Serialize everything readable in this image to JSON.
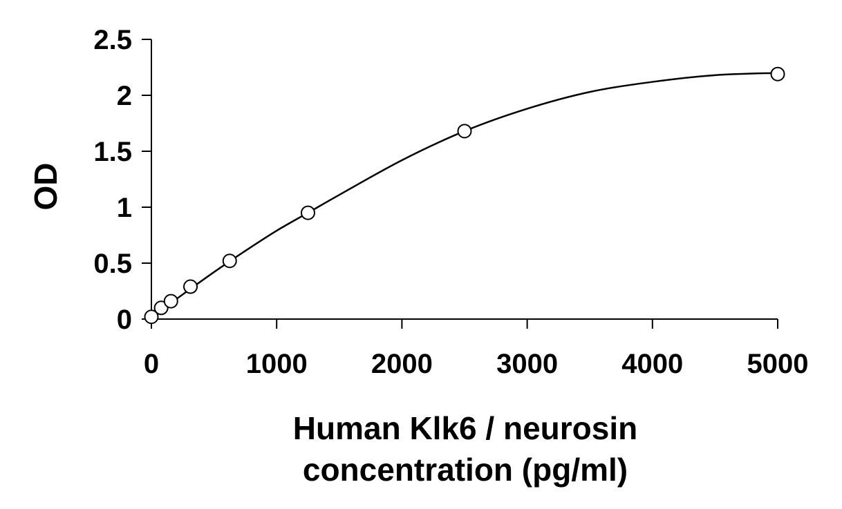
{
  "chart_data": {
    "type": "scatter",
    "title": "",
    "xlabel_lines": [
      "Human Klk6 / neurosin",
      "concentration (pg/ml)"
    ],
    "ylabel": "OD",
    "xlim": [
      0,
      5000
    ],
    "ylim": [
      0,
      2.5
    ],
    "x_ticks": [
      0,
      1000,
      2000,
      3000,
      4000,
      5000
    ],
    "x_tick_labels": [
      "0",
      "1000",
      "2000",
      "3000",
      "4000",
      "5000"
    ],
    "y_ticks": [
      0,
      0.5,
      1,
      1.5,
      2,
      2.5
    ],
    "y_tick_labels": [
      "0",
      "0.5",
      "1",
      "1.5",
      "2",
      "2.5"
    ],
    "grid": false,
    "legend": "none",
    "series": [
      {
        "points": [
          {
            "x": 0,
            "y": 0.02
          },
          {
            "x": 78,
            "y": 0.1
          },
          {
            "x": 156,
            "y": 0.16
          },
          {
            "x": 312,
            "y": 0.29
          },
          {
            "x": 625,
            "y": 0.52
          },
          {
            "x": 1250,
            "y": 0.95
          },
          {
            "x": 2500,
            "y": 1.68
          },
          {
            "x": 5000,
            "y": 2.19
          }
        ],
        "fit_curve": [
          {
            "x": 0,
            "y": 0.02
          },
          {
            "x": 250,
            "y": 0.22
          },
          {
            "x": 500,
            "y": 0.42
          },
          {
            "x": 750,
            "y": 0.61
          },
          {
            "x": 1000,
            "y": 0.79
          },
          {
            "x": 1250,
            "y": 0.95
          },
          {
            "x": 1500,
            "y": 1.11
          },
          {
            "x": 2000,
            "y": 1.42
          },
          {
            "x": 2500,
            "y": 1.68
          },
          {
            "x": 3000,
            "y": 1.88
          },
          {
            "x": 3500,
            "y": 2.03
          },
          {
            "x": 4000,
            "y": 2.12
          },
          {
            "x": 4500,
            "y": 2.18
          },
          {
            "x": 5000,
            "y": 2.2
          }
        ]
      }
    ]
  }
}
